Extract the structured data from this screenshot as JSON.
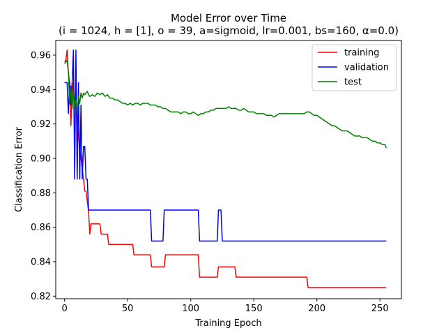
{
  "chart_data": {
    "type": "line",
    "title": "Model Error over Time",
    "subtitle": "(i = 1024, h = [1], o = 39, a=sigmoid, lr=0.001, bs=160, α=0.0)",
    "xlabel": "Training Epoch",
    "ylabel": "Classification Error",
    "xlim": [
      -7,
      267
    ],
    "ylim": [
      0.8185,
      0.9685
    ],
    "xticks": [
      0,
      50,
      100,
      150,
      200,
      250
    ],
    "yticks": [
      0.82,
      0.84,
      0.86,
      0.88,
      0.9,
      0.92,
      0.94,
      0.96
    ],
    "ytick_labels": [
      "0.82",
      "0.84",
      "0.86",
      "0.88",
      "0.90",
      "0.92",
      "0.94",
      "0.96"
    ],
    "grid": false,
    "legend_position": "top-right",
    "series": [
      {
        "name": "training",
        "color": "#ff0000",
        "points": [
          [
            0,
            0.956
          ],
          [
            1,
            0.957
          ],
          [
            2,
            0.963
          ],
          [
            3,
            0.95
          ],
          [
            4,
            0.944
          ],
          [
            5,
            0.919
          ],
          [
            6,
            0.938
          ],
          [
            7,
            0.944
          ],
          [
            8,
            0.931
          ],
          [
            9,
            0.938
          ],
          [
            10,
            0.925
          ],
          [
            11,
            0.913
          ],
          [
            12,
            0.906
          ],
          [
            13,
            0.9
          ],
          [
            14,
            0.894
          ],
          [
            15,
            0.888
          ],
          [
            16,
            0.881
          ],
          [
            17,
            0.881
          ],
          [
            18,
            0.875
          ],
          [
            19,
            0.869
          ],
          [
            20,
            0.856
          ],
          [
            21,
            0.862
          ],
          [
            28,
            0.862
          ],
          [
            29,
            0.856
          ],
          [
            34,
            0.856
          ],
          [
            35,
            0.85
          ],
          [
            54,
            0.85
          ],
          [
            55,
            0.844
          ],
          [
            68,
            0.844
          ],
          [
            69,
            0.837
          ],
          [
            79,
            0.837
          ],
          [
            80,
            0.844
          ],
          [
            106,
            0.844
          ],
          [
            107,
            0.831
          ],
          [
            121,
            0.831
          ],
          [
            122,
            0.837
          ],
          [
            135,
            0.837
          ],
          [
            136,
            0.831
          ],
          [
            192,
            0.831
          ],
          [
            193,
            0.825
          ],
          [
            255,
            0.825
          ]
        ]
      },
      {
        "name": "validation",
        "color": "#0000ff",
        "points": [
          [
            0,
            0.944
          ],
          [
            1,
            0.944
          ],
          [
            2,
            0.944
          ],
          [
            3,
            0.926
          ],
          [
            4,
            0.944
          ],
          [
            5,
            0.931
          ],
          [
            6,
            0.944
          ],
          [
            7,
            0.963
          ],
          [
            8,
            0.888
          ],
          [
            9,
            0.963
          ],
          [
            10,
            0.888
          ],
          [
            11,
            0.944
          ],
          [
            12,
            0.888
          ],
          [
            13,
            0.931
          ],
          [
            14,
            0.888
          ],
          [
            15,
            0.907
          ],
          [
            16,
            0.907
          ],
          [
            17,
            0.888
          ],
          [
            18,
            0.888
          ],
          [
            19,
            0.87
          ],
          [
            68,
            0.87
          ],
          [
            69,
            0.852
          ],
          [
            78,
            0.852
          ],
          [
            79,
            0.87
          ],
          [
            106,
            0.87
          ],
          [
            107,
            0.852
          ],
          [
            121,
            0.852
          ],
          [
            122,
            0.87
          ],
          [
            124,
            0.87
          ],
          [
            125,
            0.852
          ],
          [
            255,
            0.852
          ]
        ]
      },
      {
        "name": "test",
        "color": "#008000",
        "points": [
          [
            0,
            0.955
          ],
          [
            1,
            0.956
          ],
          [
            2,
            0.957
          ],
          [
            3,
            0.95
          ],
          [
            4,
            0.932
          ],
          [
            5,
            0.942
          ],
          [
            6,
            0.929
          ],
          [
            7,
            0.939
          ],
          [
            8,
            0.929
          ],
          [
            9,
            0.934
          ],
          [
            10,
            0.926
          ],
          [
            11,
            0.936
          ],
          [
            12,
            0.932
          ],
          [
            13,
            0.938
          ],
          [
            14,
            0.935
          ],
          [
            15,
            0.938
          ],
          [
            16,
            0.937
          ],
          [
            17,
            0.938
          ],
          [
            18,
            0.939
          ],
          [
            19,
            0.937
          ],
          [
            20,
            0.936
          ],
          [
            22,
            0.937
          ],
          [
            24,
            0.936
          ],
          [
            26,
            0.938
          ],
          [
            28,
            0.937
          ],
          [
            30,
            0.938
          ],
          [
            32,
            0.936
          ],
          [
            34,
            0.937
          ],
          [
            36,
            0.935
          ],
          [
            38,
            0.935
          ],
          [
            40,
            0.934
          ],
          [
            42,
            0.934
          ],
          [
            44,
            0.933
          ],
          [
            46,
            0.932
          ],
          [
            48,
            0.932
          ],
          [
            50,
            0.931
          ],
          [
            52,
            0.932
          ],
          [
            54,
            0.931
          ],
          [
            56,
            0.932
          ],
          [
            58,
            0.932
          ],
          [
            60,
            0.931
          ],
          [
            62,
            0.932
          ],
          [
            64,
            0.932
          ],
          [
            66,
            0.932
          ],
          [
            68,
            0.931
          ],
          [
            70,
            0.931
          ],
          [
            72,
            0.931
          ],
          [
            74,
            0.93
          ],
          [
            76,
            0.93
          ],
          [
            78,
            0.929
          ],
          [
            80,
            0.929
          ],
          [
            82,
            0.928
          ],
          [
            84,
            0.927
          ],
          [
            86,
            0.927
          ],
          [
            88,
            0.927
          ],
          [
            90,
            0.927
          ],
          [
            92,
            0.926
          ],
          [
            94,
            0.927
          ],
          [
            96,
            0.927
          ],
          [
            98,
            0.926
          ],
          [
            100,
            0.926
          ],
          [
            102,
            0.927
          ],
          [
            104,
            0.926
          ],
          [
            106,
            0.925
          ],
          [
            108,
            0.926
          ],
          [
            110,
            0.926
          ],
          [
            112,
            0.927
          ],
          [
            114,
            0.927
          ],
          [
            116,
            0.928
          ],
          [
            118,
            0.928
          ],
          [
            120,
            0.929
          ],
          [
            122,
            0.929
          ],
          [
            124,
            0.929
          ],
          [
            126,
            0.929
          ],
          [
            128,
            0.929
          ],
          [
            130,
            0.93
          ],
          [
            132,
            0.929
          ],
          [
            134,
            0.929
          ],
          [
            136,
            0.929
          ],
          [
            138,
            0.928
          ],
          [
            140,
            0.928
          ],
          [
            142,
            0.929
          ],
          [
            144,
            0.928
          ],
          [
            146,
            0.927
          ],
          [
            148,
            0.927
          ],
          [
            150,
            0.927
          ],
          [
            152,
            0.926
          ],
          [
            154,
            0.926
          ],
          [
            156,
            0.926
          ],
          [
            158,
            0.926
          ],
          [
            160,
            0.925
          ],
          [
            162,
            0.925
          ],
          [
            164,
            0.925
          ],
          [
            166,
            0.924
          ],
          [
            168,
            0.925
          ],
          [
            170,
            0.926
          ],
          [
            172,
            0.926
          ],
          [
            174,
            0.926
          ],
          [
            176,
            0.926
          ],
          [
            178,
            0.926
          ],
          [
            180,
            0.926
          ],
          [
            182,
            0.926
          ],
          [
            184,
            0.926
          ],
          [
            186,
            0.926
          ],
          [
            188,
            0.926
          ],
          [
            190,
            0.926
          ],
          [
            192,
            0.927
          ],
          [
            194,
            0.927
          ],
          [
            196,
            0.926
          ],
          [
            198,
            0.925
          ],
          [
            200,
            0.925
          ],
          [
            202,
            0.924
          ],
          [
            204,
            0.923
          ],
          [
            206,
            0.922
          ],
          [
            208,
            0.921
          ],
          [
            210,
            0.92
          ],
          [
            212,
            0.919
          ],
          [
            214,
            0.919
          ],
          [
            216,
            0.918
          ],
          [
            218,
            0.917
          ],
          [
            220,
            0.916
          ],
          [
            222,
            0.916
          ],
          [
            224,
            0.916
          ],
          [
            226,
            0.915
          ],
          [
            228,
            0.914
          ],
          [
            230,
            0.913
          ],
          [
            232,
            0.913
          ],
          [
            234,
            0.913
          ],
          [
            236,
            0.912
          ],
          [
            238,
            0.912
          ],
          [
            240,
            0.912
          ],
          [
            242,
            0.911
          ],
          [
            244,
            0.91
          ],
          [
            246,
            0.91
          ],
          [
            248,
            0.909
          ],
          [
            250,
            0.909
          ],
          [
            252,
            0.908
          ],
          [
            254,
            0.908
          ],
          [
            255,
            0.906
          ]
        ]
      }
    ]
  }
}
